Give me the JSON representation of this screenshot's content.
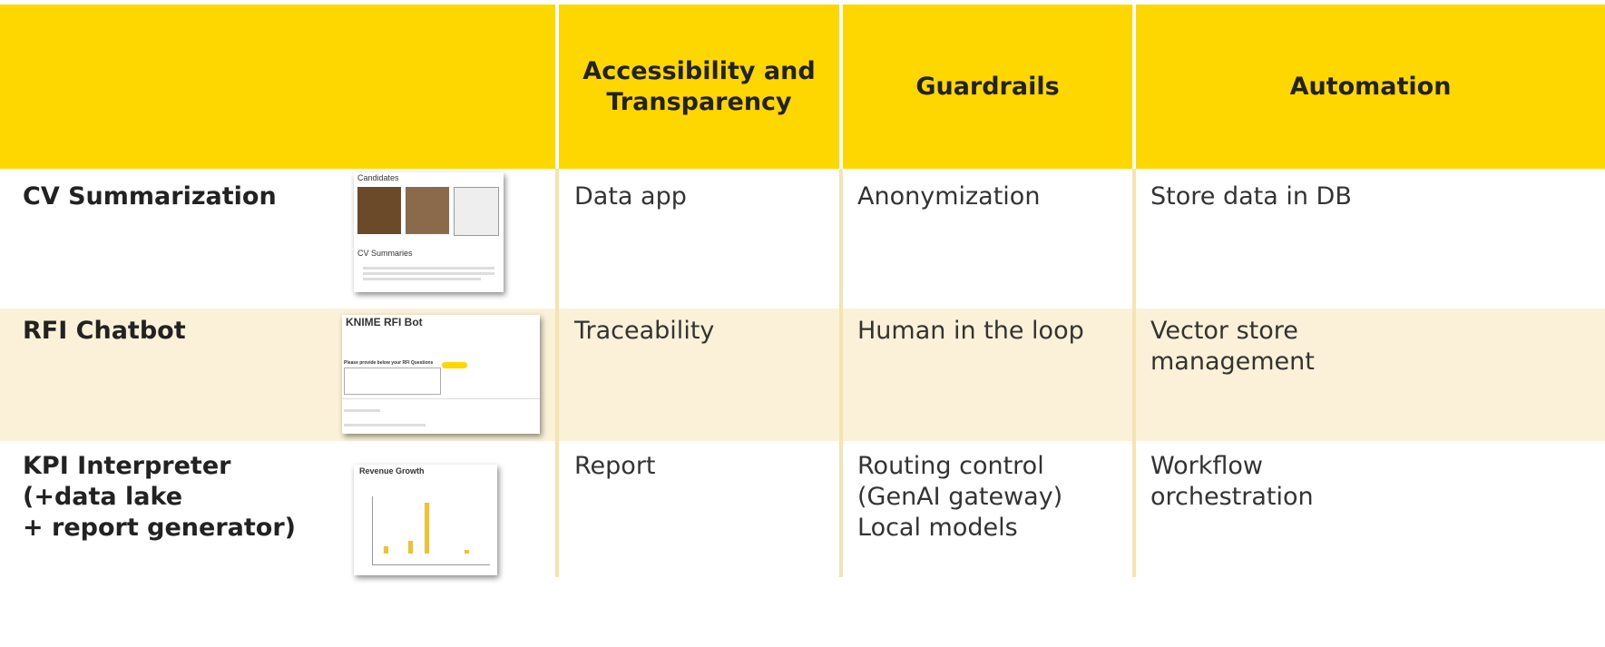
{
  "header": {
    "columns": [
      "Accessibility and Transparency",
      "Guardrails",
      "Automation"
    ]
  },
  "rows": [
    {
      "name": [
        "CV Summarization"
      ],
      "thumbnail": [
        "Candidates",
        "CV Summaries"
      ],
      "cells": [
        [
          "Data app"
        ],
        [
          "Anonymization"
        ],
        [
          "Store data in DB"
        ]
      ]
    },
    {
      "name": [
        "RFI Chatbot"
      ],
      "thumbnail": [
        "KNIME RFI Bot",
        "Please provide below your RFI Questions"
      ],
      "cells": [
        [
          "Traceability"
        ],
        [
          "Human in the loop"
        ],
        [
          "Vector store",
          "management"
        ]
      ]
    },
    {
      "name": [
        "KPI Interpreter",
        "(+data lake",
        "+ report generator)"
      ],
      "thumbnail": [
        "Revenue Growth"
      ],
      "cells": [
        [
          "Report"
        ],
        [
          "Routing control",
          "(GenAI gateway)",
          "Local models"
        ],
        [
          "Workflow",
          "orchestration"
        ]
      ]
    }
  ]
}
